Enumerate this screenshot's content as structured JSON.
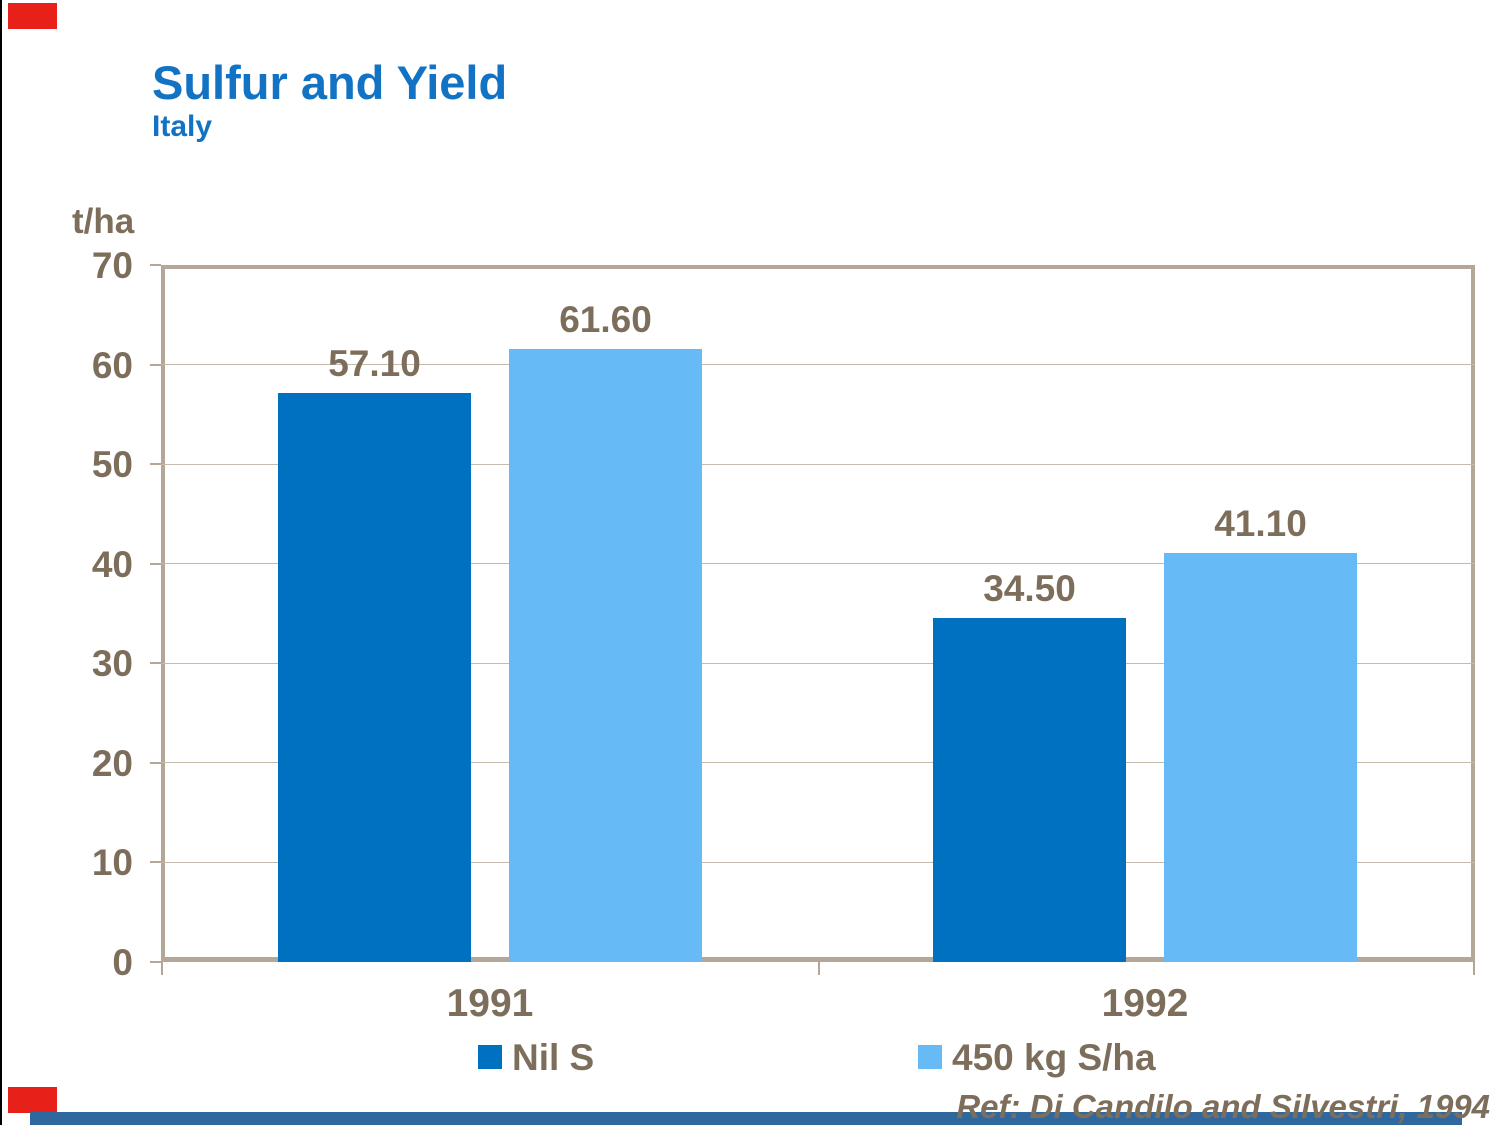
{
  "page": {
    "title": "Sulfur and Yield",
    "subtitle": "Italy",
    "unit_label": "t/ha",
    "reference": "Ref: Di Candilo and Silvestri, 1994"
  },
  "colors": {
    "title_blue": "#1273C4",
    "text_brown": "#7D6E5B",
    "axis_tan": "#B5A797",
    "gridline": "#C6BAAC",
    "series1_dark_blue": "#0070C0",
    "series2_light_blue": "#66BBF7",
    "accent_red": "#E8201A",
    "footer_bar_blue": "#2F689F"
  },
  "chart_data": {
    "type": "bar",
    "title": "Sulfur and Yield",
    "subtitle": "Italy",
    "categories": [
      "1991",
      "1992"
    ],
    "series": [
      {
        "name": "Nil S",
        "color": "#0070C0",
        "values": [
          57.1,
          34.5
        ],
        "labels": [
          "57.10",
          "34.50"
        ]
      },
      {
        "name": "450 kg S/ha",
        "color": "#66BBF7",
        "values": [
          61.6,
          41.1
        ],
        "labels": [
          "61.60",
          "41.10"
        ]
      }
    ],
    "xlabel": "",
    "ylabel": "t/ha",
    "ylim": [
      0,
      70
    ],
    "yticks": [
      0,
      10,
      20,
      30,
      40,
      50,
      60,
      70
    ],
    "grid": true,
    "legend_position": "bottom",
    "annotation": "Ref: Di Candilo and Silvestri, 1994"
  }
}
